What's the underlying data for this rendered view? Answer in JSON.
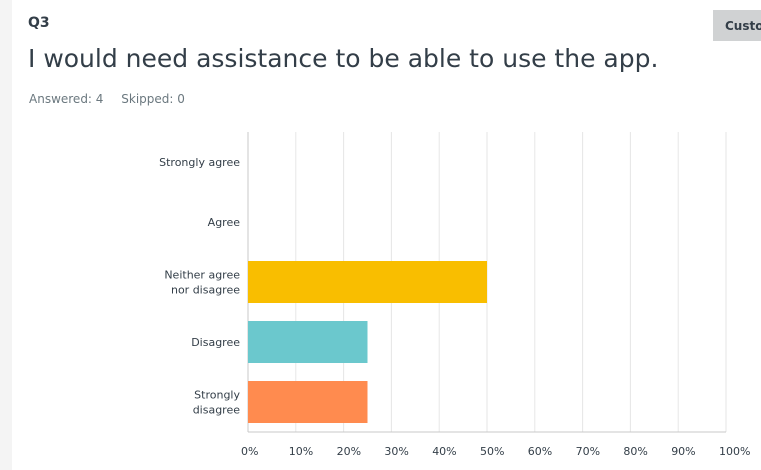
{
  "question": {
    "number": "Q3",
    "title": "I would need assistance to be able to use the app.",
    "answered": "Answered: 4",
    "skipped": "Skipped: 0"
  },
  "toolbar": {
    "customize_label": "Customize"
  },
  "colors": {
    "neither": "#f9be00",
    "disagree": "#6bc8cd",
    "strongly_disagree": "#ff8b4f",
    "grid": "#e6e6e6",
    "axis": "#c8c8c8"
  },
  "chart_data": {
    "type": "bar",
    "orientation": "horizontal",
    "categories": [
      [
        "Strongly agree"
      ],
      [
        "Agree"
      ],
      [
        "Neither agree",
        "nor disagree"
      ],
      [
        "Disagree"
      ],
      [
        "Strongly",
        "disagree"
      ]
    ],
    "values": [
      0,
      0,
      50,
      25,
      25
    ],
    "value_unit": "%",
    "xlim": [
      0,
      100
    ],
    "xticks": [
      "0%",
      "10%",
      "20%",
      "30%",
      "40%",
      "50%",
      "60%",
      "70%",
      "80%",
      "90%",
      "100%"
    ],
    "grid": true
  }
}
